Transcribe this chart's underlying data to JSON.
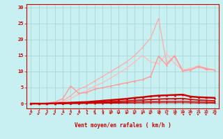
{
  "bg_color": "#c8f0f0",
  "grid_color": "#a8d8d8",
  "xlabel": "Vent moyen/en rafales ( km/h )",
  "xlabel_color": "#cc0000",
  "tick_color": "#cc0000",
  "x_ticks": [
    0,
    1,
    2,
    3,
    4,
    5,
    6,
    7,
    8,
    9,
    10,
    11,
    12,
    13,
    14,
    15,
    16,
    17,
    18,
    19,
    20,
    21,
    22,
    23
  ],
  "ylim": [
    -1.5,
    31
  ],
  "xlim": [
    -0.5,
    23.5
  ],
  "yticks": [
    0,
    5,
    10,
    15,
    20,
    25,
    30
  ],
  "lines": [
    {
      "x": [
        0,
        1,
        2,
        3,
        4,
        5,
        6,
        7,
        8,
        9,
        10,
        11,
        12,
        13,
        14,
        15,
        16,
        17,
        18,
        19,
        20,
        21,
        22,
        23
      ],
      "y": [
        0.0,
        0.0,
        0.0,
        0.1,
        0.2,
        0.3,
        0.4,
        0.5,
        0.7,
        0.9,
        1.1,
        1.3,
        1.5,
        1.8,
        2.0,
        2.3,
        2.5,
        2.6,
        2.7,
        2.8,
        2.2,
        2.0,
        1.9,
        1.8
      ],
      "color": "#cc0000",
      "lw": 1.8,
      "marker": "^",
      "ms": 2.5,
      "zorder": 5
    },
    {
      "x": [
        0,
        1,
        2,
        3,
        4,
        5,
        6,
        7,
        8,
        9,
        10,
        11,
        12,
        13,
        14,
        15,
        16,
        17,
        18,
        19,
        20,
        21,
        22,
        23
      ],
      "y": [
        0.0,
        0.0,
        0.0,
        0.05,
        0.1,
        0.15,
        0.2,
        0.3,
        0.4,
        0.5,
        0.6,
        0.7,
        0.8,
        1.0,
        1.1,
        1.3,
        1.4,
        1.5,
        1.5,
        1.6,
        1.3,
        1.1,
        1.0,
        0.9
      ],
      "color": "#cc0000",
      "lw": 1.3,
      "marker": "^",
      "ms": 2.0,
      "zorder": 4
    },
    {
      "x": [
        0,
        1,
        2,
        3,
        4,
        5,
        6,
        7,
        8,
        9,
        10,
        11,
        12,
        13,
        14,
        15,
        16,
        17,
        18,
        19,
        20,
        21,
        22,
        23
      ],
      "y": [
        0.0,
        0.0,
        0.0,
        0.02,
        0.05,
        0.08,
        0.1,
        0.15,
        0.2,
        0.25,
        0.3,
        0.35,
        0.4,
        0.5,
        0.55,
        0.6,
        0.65,
        0.7,
        0.7,
        0.75,
        0.6,
        0.5,
        0.45,
        0.4
      ],
      "color": "#cc0000",
      "lw": 1.0,
      "marker": "^",
      "ms": 1.8,
      "zorder": 3
    },
    {
      "x": [
        0,
        1,
        2,
        3,
        4,
        5,
        6,
        7,
        8,
        9,
        10,
        11,
        12,
        13,
        14,
        15,
        16,
        17,
        18,
        19,
        20,
        21,
        22,
        23
      ],
      "y": [
        0.0,
        0.0,
        0.0,
        0.01,
        0.02,
        0.04,
        0.05,
        0.07,
        0.09,
        0.11,
        0.13,
        0.15,
        0.17,
        0.2,
        0.22,
        0.25,
        0.27,
        0.28,
        0.28,
        0.3,
        0.24,
        0.2,
        0.18,
        0.16
      ],
      "color": "#cc0000",
      "lw": 0.8,
      "marker": "^",
      "ms": 1.5,
      "zorder": 2
    },
    {
      "x": [
        0,
        1,
        2,
        3,
        4,
        5,
        6,
        7,
        8,
        9,
        10,
        11,
        12,
        13,
        14,
        15,
        16,
        17,
        18,
        19,
        20,
        21,
        22,
        23
      ],
      "y": [
        0.0,
        0.0,
        0.2,
        0.5,
        1.5,
        5.5,
        3.2,
        3.5,
        4.5,
        5.0,
        5.5,
        6.0,
        6.5,
        7.0,
        7.5,
        8.5,
        14.8,
        12.0,
        14.8,
        10.2,
        10.5,
        11.5,
        10.8,
        10.5
      ],
      "color": "#ff9999",
      "lw": 1.0,
      "marker": "D",
      "ms": 2.0,
      "zorder": 3
    },
    {
      "x": [
        0,
        1,
        2,
        3,
        4,
        5,
        6,
        7,
        8,
        9,
        10,
        11,
        12,
        13,
        14,
        15,
        16,
        17,
        18,
        19,
        20,
        21,
        22,
        23
      ],
      "y": [
        0.0,
        0.0,
        0.1,
        0.3,
        0.8,
        2.5,
        4.5,
        5.5,
        7.0,
        8.5,
        10.0,
        11.5,
        13.0,
        15.0,
        17.5,
        20.5,
        26.5,
        12.5,
        15.0,
        10.5,
        10.8,
        11.8,
        11.0,
        10.5
      ],
      "color": "#ffaaaa",
      "lw": 0.9,
      "marker": "D",
      "ms": 1.8,
      "zorder": 2
    },
    {
      "x": [
        0,
        1,
        2,
        3,
        4,
        5,
        6,
        7,
        8,
        9,
        10,
        11,
        12,
        13,
        14,
        15,
        16,
        17,
        18,
        19,
        20,
        21,
        22,
        23
      ],
      "y": [
        0.0,
        0.0,
        0.05,
        0.2,
        0.5,
        1.5,
        3.0,
        4.0,
        5.5,
        6.5,
        8.0,
        9.5,
        11.0,
        13.0,
        15.0,
        13.0,
        12.5,
        15.5,
        12.5,
        10.5,
        11.0,
        11.5,
        10.5,
        10.5
      ],
      "color": "#ffbbbb",
      "lw": 0.9,
      "marker": "D",
      "ms": 1.8,
      "zorder": 2
    }
  ],
  "arrow_angles": [
    90,
    90,
    90,
    90,
    90,
    90,
    90,
    135,
    135,
    135,
    200,
    200,
    200,
    220,
    220,
    220,
    250,
    270,
    270,
    290,
    310,
    310,
    315,
    270
  ]
}
